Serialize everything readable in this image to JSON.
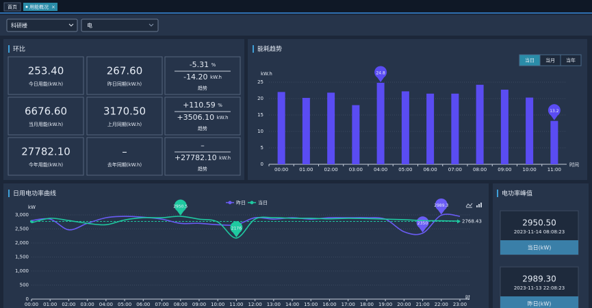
{
  "tabs": [
    "首页",
    "用能概况"
  ],
  "filters": [
    "科研楼",
    "电"
  ],
  "comparison": {
    "title": "环比",
    "rows": [
      {
        "current": {
          "value": "253.40",
          "label": "今日用能(kW.h)"
        },
        "previous": {
          "value": "267.60",
          "label": "昨日同期(kW.h)"
        },
        "trend": {
          "percent": "-5.31",
          "percent_unit": "%",
          "diff": "-14.20",
          "diff_unit": "kW.h",
          "label": "趋势"
        }
      },
      {
        "current": {
          "value": "6676.60",
          "label": "当月用能(kW.h)"
        },
        "previous": {
          "value": "3170.50",
          "label": "上月同期(kW.h)"
        },
        "trend": {
          "percent": "+110.59",
          "percent_unit": "%",
          "diff": "+3506.10",
          "diff_unit": "kW.h",
          "label": "趋势"
        }
      },
      {
        "current": {
          "value": "27782.10",
          "label": "今年用能(kW.h)"
        },
        "previous": {
          "value": "–",
          "label": "去年同期(kW.h)"
        },
        "trend": {
          "percent": "–",
          "diff": "+27782.10",
          "diff_unit": "kW.h",
          "label": "趋势"
        }
      }
    ]
  },
  "chart_data": [
    {
      "type": "bar",
      "title": "能耗趋势",
      "buttons": [
        "当日",
        "当月",
        "当年"
      ],
      "ylabel": "kW.h",
      "xlabel": "时间",
      "categories": [
        "00:00",
        "01:00",
        "02:00",
        "03:00",
        "04:00",
        "05:00",
        "06:00",
        "07:00",
        "08:00",
        "09:00",
        "10:00",
        "11:00"
      ],
      "values": [
        22,
        20.2,
        21.8,
        18,
        24.8,
        22.2,
        21.5,
        21.5,
        24.2,
        22.7,
        20.3,
        13.2
      ],
      "color": "#5a4cf2",
      "ylim": [
        0,
        25
      ],
      "yticks": [
        0,
        5,
        10,
        15,
        20,
        25
      ]
    },
    {
      "type": "line",
      "title": "日用电功率曲线",
      "ylabel": "kW",
      "xlabel": "时",
      "categories": [
        "00:00",
        "01:00",
        "02:00",
        "03:00",
        "04:00",
        "05:00",
        "06:00",
        "07:00",
        "08:00",
        "09:00",
        "10:00",
        "11:00",
        "12:00",
        "13:00",
        "14:00",
        "15:00",
        "16:00",
        "17:00",
        "18:00",
        "19:00",
        "20:00",
        "21:00",
        "22:00",
        "23:00"
      ],
      "series": [
        {
          "name": "昨日",
          "color": "#6a5cf5",
          "values": [
            2800,
            2850,
            2470,
            2700,
            2900,
            2950,
            2920,
            2850,
            2700,
            2700,
            2650,
            2650,
            2900,
            2850,
            2900,
            2850,
            2900,
            2900,
            2900,
            2850,
            2400,
            2350,
            2989.3,
            2950
          ]
        },
        {
          "name": "当日",
          "color": "#1fc8a0",
          "values": [
            2720,
            2880,
            2800,
            2700,
            2650,
            2820,
            2900,
            2900,
            2950.5,
            2850,
            2750,
            2176,
            2850,
            2900,
            2880,
            2880,
            2860,
            2880,
            2870,
            2850,
            2830,
            2800,
            2790,
            2780
          ]
        }
      ],
      "average": 2768.43,
      "ylim": [
        0,
        3000
      ],
      "yticks": [
        0,
        500,
        {
          "value": 1000,
          "label": "1,000"
        },
        {
          "value": 1500,
          "label": "1,500"
        },
        {
          "value": 2000,
          "label": "2,000"
        },
        {
          "value": 2500,
          "label": "2,500"
        },
        {
          "value": 3000,
          "label": "3,000"
        }
      ]
    }
  ],
  "peaks": {
    "title": "电功率峰值",
    "items": [
      {
        "value": "2950.50",
        "time": "2023-11-14 08:08:23",
        "label": "当日(kW)"
      },
      {
        "value": "2989.30",
        "time": "2023-11-13 22:08:23",
        "label": "昨日(kW)"
      }
    ]
  }
}
